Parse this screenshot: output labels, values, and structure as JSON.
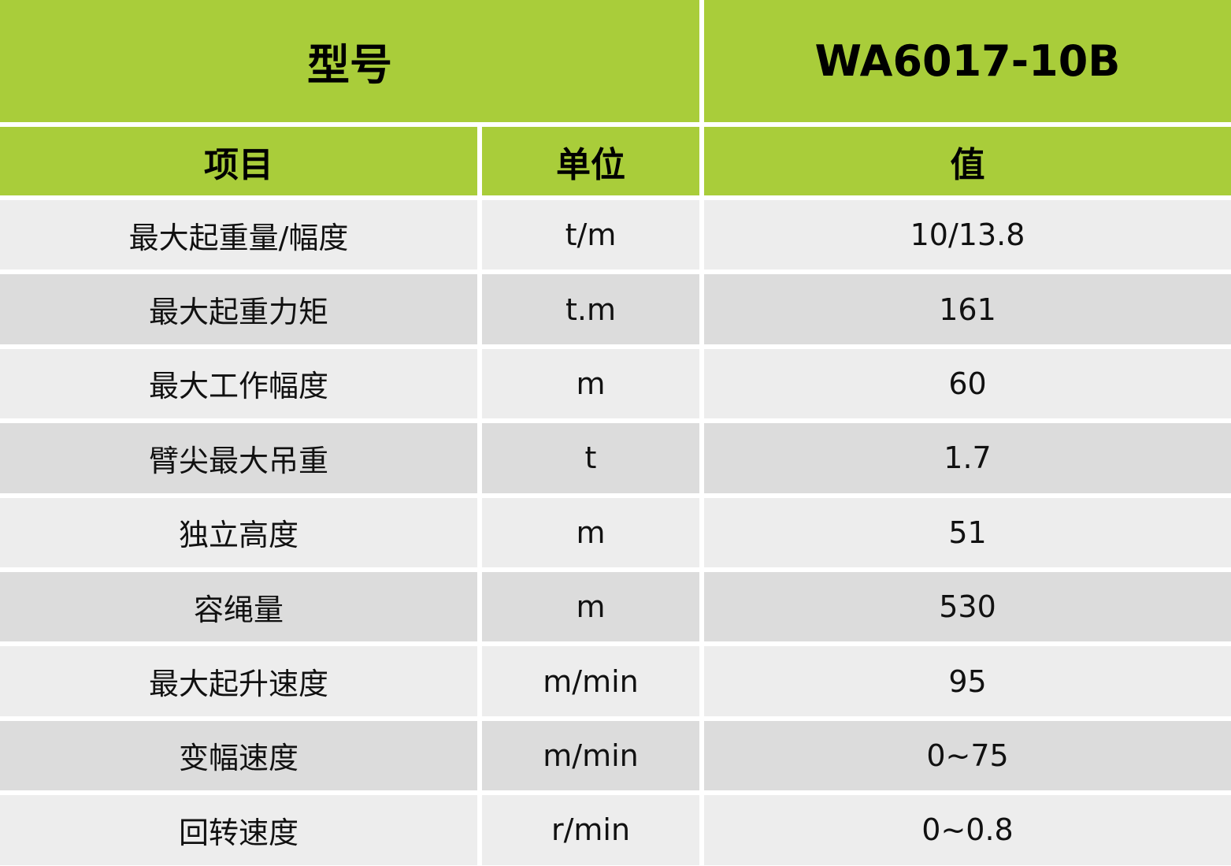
{
  "header": {
    "model_label": "型号",
    "model_value": "WA6017-10B",
    "columns": [
      "项目",
      "单位",
      "值"
    ]
  },
  "colors": {
    "header_bg": "#a9cd3a",
    "row_light": "#ededed",
    "row_dark": "#dcdcdc"
  },
  "rows": [
    {
      "item": "最大起重量/幅度",
      "unit": "t/m",
      "value": "10/13.8"
    },
    {
      "item": "最大起重力矩",
      "unit": "t.m",
      "value": "161"
    },
    {
      "item": "最大工作幅度",
      "unit": "m",
      "value": "60"
    },
    {
      "item": "臂尖最大吊重",
      "unit": "t",
      "value": "1.7"
    },
    {
      "item": "独立高度",
      "unit": "m",
      "value": "51"
    },
    {
      "item": "容绳量",
      "unit": "m",
      "value": "530"
    },
    {
      "item": "最大起升速度",
      "unit": "m/min",
      "value": "95"
    },
    {
      "item": "变幅速度",
      "unit": "m/min",
      "value": "0~75"
    },
    {
      "item": "回转速度",
      "unit": "r/min",
      "value": "0~0.8"
    }
  ]
}
